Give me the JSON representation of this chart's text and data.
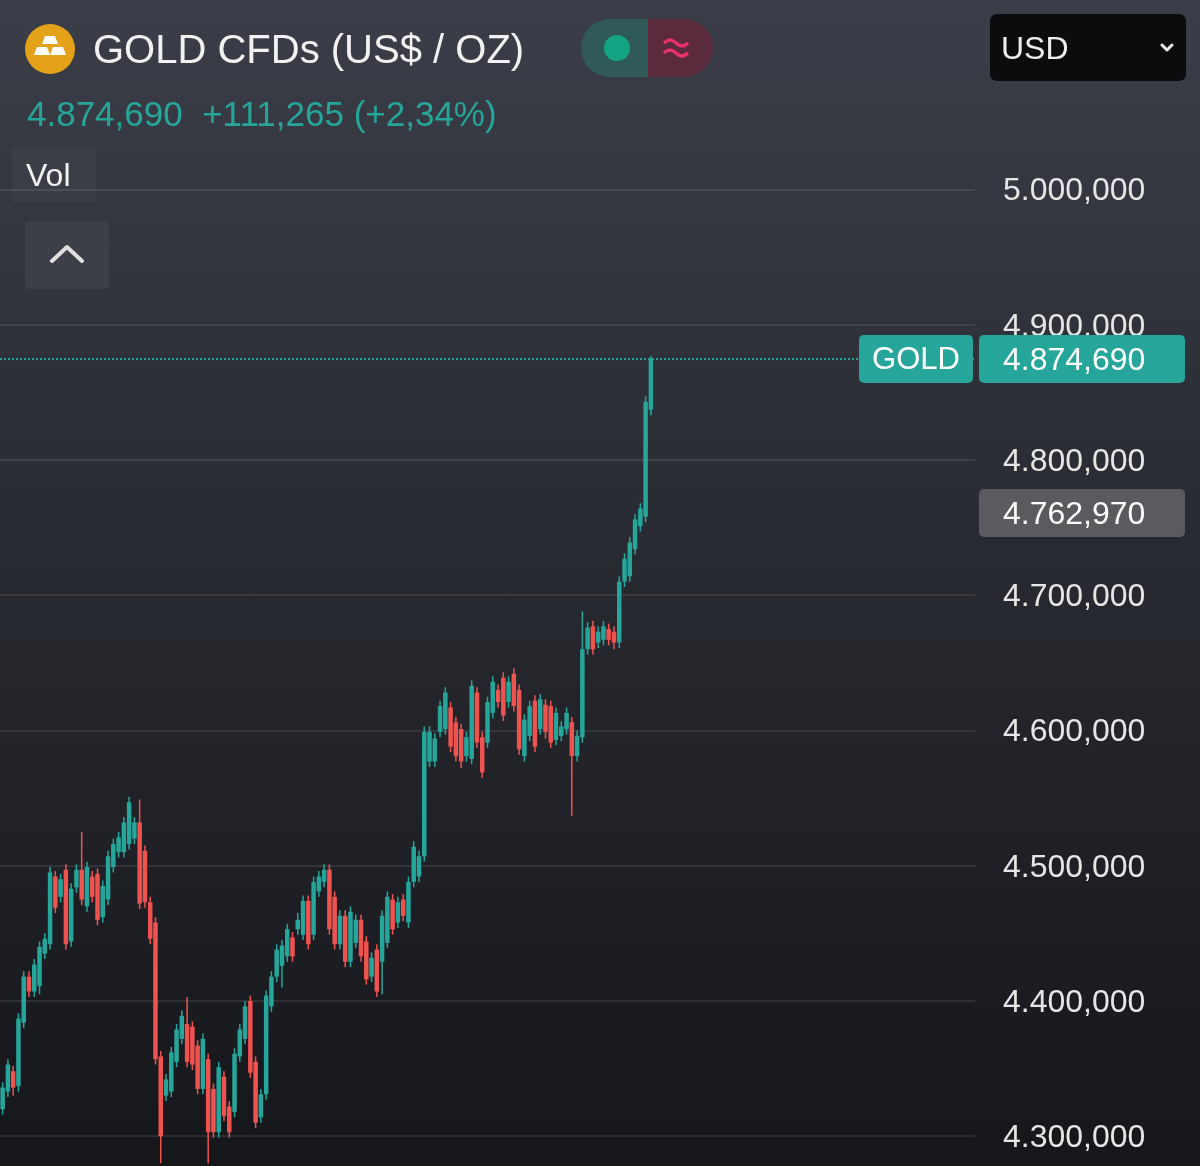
{
  "chart_data": {
    "type": "candlestick",
    "title": "GOLD CFDs (US$ / OZ)",
    "subtitle": "4.874,690  +111,265 (+2,34%)",
    "annotations": [
      "Vol",
      "USD",
      "4.874,690",
      "4.762,970"
    ],
    "categories": [
      null,
      null,
      null,
      null,
      null,
      null,
      null,
      null,
      null,
      null,
      null,
      null,
      null,
      null,
      null,
      null,
      null,
      null,
      null,
      null,
      null,
      null,
      null,
      null,
      null,
      null,
      null,
      null,
      null,
      null,
      null,
      null,
      null,
      null,
      null,
      null,
      null,
      null,
      null,
      null,
      null,
      null,
      null,
      null,
      null,
      null,
      null,
      null,
      null,
      null,
      null,
      null,
      null,
      null,
      null,
      null,
      null,
      null,
      null,
      null,
      null,
      null,
      null,
      null,
      null,
      null,
      null,
      null,
      null,
      null,
      null,
      null,
      null,
      null,
      null,
      null,
      null,
      null,
      null,
      null,
      null,
      null,
      null,
      null,
      null,
      null,
      null,
      null,
      null,
      null,
      null,
      null,
      null,
      null,
      null,
      null,
      null,
      null,
      null,
      null,
      null,
      null,
      null,
      null,
      null,
      null,
      null,
      null,
      null,
      null,
      null,
      null,
      null,
      null,
      null,
      null,
      null,
      null,
      null,
      null,
      null,
      null,
      null,
      null,
      null,
      null,
      null,
      null,
      null,
      null,
      null,
      null,
      null,
      null,
      null,
      null,
      null,
      null,
      null,
      null,
      null,
      null,
      null,
      null,
      null,
      null,
      null,
      null,
      null,
      null,
      null,
      null,
      null,
      null,
      null,
      null,
      null,
      null,
      null,
      null,
      null,
      null,
      null,
      null,
      null,
      null,
      null,
      null,
      null,
      null,
      null,
      null,
      null,
      null,
      null,
      null,
      null,
      null,
      null,
      null,
      null,
      null,
      null,
      null,
      null
    ],
    "ohlc": [
      [
        4320,
        4340,
        4316,
        4336
      ],
      [
        4333,
        4357,
        4329,
        4353
      ],
      [
        4348,
        4352,
        4330,
        4336
      ],
      [
        4337,
        4391,
        4333,
        4387
      ],
      [
        4384,
        4422,
        4380,
        4418
      ],
      [
        4418,
        4422,
        4403,
        4407
      ],
      [
        4407,
        4431,
        4403,
        4427
      ],
      [
        4411,
        4444,
        4405,
        4440
      ],
      [
        4435,
        4450,
        4431,
        4446
      ],
      [
        4442,
        4499,
        4438,
        4495
      ],
      [
        4492,
        4496,
        4465,
        4469
      ],
      [
        4477,
        4494,
        4473,
        4490
      ],
      [
        4497,
        4501,
        4438,
        4442
      ],
      [
        4444,
        4487,
        4440,
        4483
      ],
      [
        4484,
        4501,
        4480,
        4497
      ],
      [
        4497,
        4525,
        4471,
        4475
      ],
      [
        4470,
        4503,
        4466,
        4499
      ],
      [
        4492,
        4496,
        4473,
        4477
      ],
      [
        4494,
        4498,
        4456,
        4460
      ],
      [
        4462,
        4489,
        4458,
        4485
      ],
      [
        4475,
        4511,
        4471,
        4507
      ],
      [
        4499,
        4520,
        4495,
        4516
      ],
      [
        4510,
        4525,
        4506,
        4521
      ],
      [
        4510,
        4536,
        4506,
        4532
      ],
      [
        4516,
        4551,
        4512,
        4547
      ],
      [
        4520,
        4536,
        4516,
        4532
      ],
      [
        4532,
        4549,
        4468,
        4472
      ],
      [
        4511,
        4515,
        4469,
        4473
      ],
      [
        4473,
        4477,
        4442,
        4446
      ],
      [
        4458,
        4462,
        4353,
        4357
      ],
      [
        4359,
        4363,
        4280,
        4300
      ],
      [
        4330,
        4346,
        4326,
        4342
      ],
      [
        4333,
        4366,
        4329,
        4362
      ],
      [
        4355,
        4383,
        4351,
        4379
      ],
      [
        4372,
        4393,
        4368,
        4389
      ],
      [
        4383,
        4403,
        4351,
        4355
      ],
      [
        4381,
        4385,
        4349,
        4353
      ],
      [
        4367,
        4371,
        4331,
        4335
      ],
      [
        4335,
        4376,
        4331,
        4372
      ],
      [
        4357,
        4361,
        4280,
        4303
      ],
      [
        4335,
        4339,
        4299,
        4303
      ],
      [
        4303,
        4355,
        4299,
        4351
      ],
      [
        4344,
        4348,
        4311,
        4315
      ],
      [
        4322,
        4326,
        4299,
        4303
      ],
      [
        4318,
        4365,
        4314,
        4361
      ],
      [
        4359,
        4383,
        4355,
        4379
      ],
      [
        4372,
        4400,
        4368,
        4396
      ],
      [
        4400,
        4404,
        4343,
        4347
      ],
      [
        4355,
        4359,
        4306,
        4310
      ],
      [
        4314,
        4335,
        4310,
        4331
      ],
      [
        4331,
        4408,
        4327,
        4404
      ],
      [
        4396,
        4422,
        4392,
        4418
      ],
      [
        4418,
        4442,
        4414,
        4438
      ],
      [
        4426,
        4445,
        4410,
        4441
      ],
      [
        4433,
        4457,
        4429,
        4453
      ],
      [
        4447,
        4451,
        4429,
        4433
      ],
      [
        4453,
        4465,
        4449,
        4460
      ],
      [
        4449,
        4478,
        4445,
        4474
      ],
      [
        4474,
        4478,
        4438,
        4442
      ],
      [
        4449,
        4492,
        4445,
        4488
      ],
      [
        4481,
        4496,
        4477,
        4492
      ],
      [
        4488,
        4501,
        4484,
        4497
      ],
      [
        4497,
        4501,
        4449,
        4453
      ],
      [
        4477,
        4481,
        4438,
        4442
      ],
      [
        4442,
        4467,
        4438,
        4463
      ],
      [
        4463,
        4467,
        4425,
        4429
      ],
      [
        4429,
        4470,
        4425,
        4466
      ],
      [
        4443,
        4464,
        4439,
        4460
      ],
      [
        4460,
        4464,
        4429,
        4433
      ],
      [
        4444,
        4448,
        4412,
        4416
      ],
      [
        4418,
        4436,
        4414,
        4432
      ],
      [
        4438,
        4442,
        4403,
        4407
      ],
      [
        4429,
        4467,
        4405,
        4463
      ],
      [
        4443,
        4481,
        4439,
        4477
      ],
      [
        4475,
        4479,
        4449,
        4453
      ],
      [
        4458,
        4477,
        4454,
        4473
      ],
      [
        4475,
        4479,
        4459,
        4463
      ],
      [
        4458,
        4492,
        4454,
        4488
      ],
      [
        4488,
        4518,
        4484,
        4514
      ],
      [
        4492,
        4511,
        4488,
        4507
      ],
      [
        4507,
        4603,
        4503,
        4599
      ],
      [
        4577,
        4603,
        4573,
        4599
      ],
      [
        4577,
        4598,
        4573,
        4594
      ],
      [
        4599,
        4622,
        4595,
        4618
      ],
      [
        4601,
        4632,
        4597,
        4628
      ],
      [
        4617,
        4621,
        4584,
        4588
      ],
      [
        4606,
        4610,
        4577,
        4581
      ],
      [
        4601,
        4605,
        4572,
        4577
      ],
      [
        4581,
        4599,
        4577,
        4595
      ],
      [
        4579,
        4637,
        4575,
        4633
      ],
      [
        4628,
        4632,
        4587,
        4591
      ],
      [
        4595,
        4599,
        4565,
        4569
      ],
      [
        4591,
        4625,
        4587,
        4621
      ],
      [
        4613,
        4640,
        4609,
        4636
      ],
      [
        4630,
        4634,
        4617,
        4621
      ],
      [
        4639,
        4643,
        4607,
        4611
      ],
      [
        4621,
        4640,
        4617,
        4636
      ],
      [
        4642,
        4646,
        4614,
        4618
      ],
      [
        4630,
        4634,
        4582,
        4586
      ],
      [
        4581,
        4612,
        4577,
        4608
      ],
      [
        4596,
        4622,
        4592,
        4618
      ],
      [
        4622,
        4626,
        4584,
        4588
      ],
      [
        4601,
        4627,
        4597,
        4623
      ],
      [
        4619,
        4623,
        4594,
        4599
      ],
      [
        4618,
        4622,
        4587,
        4591
      ],
      [
        4593,
        4617,
        4589,
        4613
      ],
      [
        4596,
        4607,
        4592,
        4603
      ],
      [
        4601,
        4617,
        4597,
        4613
      ],
      [
        4606,
        4610,
        4537,
        4581
      ],
      [
        4581,
        4600,
        4577,
        4596
      ],
      [
        4595,
        4688,
        4591,
        4660
      ],
      [
        4660,
        4680,
        4656,
        4676
      ],
      [
        4677,
        4681,
        4656,
        4660
      ],
      [
        4665,
        4677,
        4661,
        4673
      ],
      [
        4667,
        4681,
        4663,
        4677
      ],
      [
        4675,
        4679,
        4663,
        4667
      ],
      [
        4673,
        4677,
        4660,
        4665
      ],
      [
        4665,
        4714,
        4661,
        4710
      ],
      [
        4710,
        4731,
        4706,
        4727
      ],
      [
        4714,
        4743,
        4710,
        4739
      ],
      [
        4734,
        4760,
        4730,
        4756
      ],
      [
        4751,
        4768,
        4747,
        4764
      ],
      [
        4758,
        4847,
        4754,
        4843
      ],
      [
        4837,
        4877,
        4833,
        4874.69
      ],
      null,
      null,
      null,
      null,
      null,
      null,
      null,
      null,
      null,
      null,
      null,
      null,
      null,
      null,
      null,
      null,
      null,
      null,
      null,
      null,
      null,
      null,
      null,
      null,
      null,
      null,
      null,
      null,
      null,
      null,
      null,
      null,
      null,
      null,
      null,
      null,
      null,
      null,
      null,
      null,
      null,
      null,
      null,
      null,
      null,
      null,
      null,
      null,
      null,
      null,
      null,
      null,
      null,
      null,
      null,
      null,
      null,
      null,
      null,
      null,
      null
    ],
    "colors": [
      "#26a69a",
      "#26a69a",
      "#ef5350",
      "#26a69a",
      "#26a69a",
      "#ef5350",
      "#26a69a",
      "#26a69a",
      "#26a69a",
      "#26a69a",
      "#ef5350",
      "#26a69a",
      "#ef5350",
      "#26a69a",
      "#26a69a",
      "#ef5350",
      "#26a69a",
      "#ef5350",
      "#ef5350",
      "#26a69a",
      "#26a69a",
      "#26a69a",
      "#26a69a",
      "#26a69a",
      "#26a69a",
      "#26a69a",
      "#ef5350",
      "#ef5350",
      "#ef5350",
      "#ef5350",
      "#ef5350",
      "#26a69a",
      "#26a69a",
      "#26a69a",
      "#26a69a",
      "#ef5350",
      "#ef5350",
      "#ef5350",
      "#26a69a",
      "#ef5350",
      "#ef5350",
      "#26a69a",
      "#ef5350",
      "#ef5350",
      "#26a69a",
      "#26a69a",
      "#26a69a",
      "#ef5350",
      "#ef5350",
      "#26a69a",
      "#26a69a",
      "#26a69a",
      "#26a69a",
      "#26a69a",
      "#26a69a",
      "#ef5350",
      "#26a69a",
      "#26a69a",
      "#ef5350",
      "#26a69a",
      "#26a69a",
      "#26a69a",
      "#ef5350",
      "#ef5350",
      "#26a69a",
      "#ef5350",
      "#26a69a",
      "#26a69a",
      "#ef5350",
      "#ef5350",
      "#26a69a",
      "#ef5350",
      "#26a69a",
      "#26a69a",
      "#ef5350",
      "#26a69a",
      "#ef5350",
      "#26a69a",
      "#26a69a",
      "#26a69a",
      "#26a69a",
      "#26a69a",
      "#26a69a",
      "#26a69a",
      "#26a69a",
      "#ef5350",
      "#ef5350",
      "#ef5350",
      "#26a69a",
      "#26a69a",
      "#ef5350",
      "#ef5350",
      "#26a69a",
      "#26a69a",
      "#ef5350",
      "#ef5350",
      "#26a69a",
      "#ef5350",
      "#ef5350",
      "#26a69a",
      "#26a69a",
      "#ef5350",
      "#26a69a",
      "#ef5350",
      "#ef5350",
      "#26a69a",
      "#26a69a",
      "#26a69a",
      "#ef5350",
      "#26a69a",
      "#26a69a",
      "#26a69a",
      "#ef5350",
      "#26a69a",
      "#26a69a",
      "#ef5350",
      "#ef5350",
      "#26a69a",
      "#26a69a",
      "#26a69a",
      "#26a69a",
      "#26a69a",
      "#26a69a",
      "#26a69a",
      null,
      null,
      null,
      null,
      null,
      null,
      null,
      null,
      null,
      null,
      null,
      null,
      null,
      null,
      null,
      null,
      null,
      null,
      null,
      null,
      null,
      null,
      null,
      null,
      null,
      null,
      null,
      null,
      null,
      null,
      null,
      null,
      null,
      null,
      null,
      null,
      null,
      null,
      null,
      null,
      null,
      null,
      null,
      null,
      null,
      null,
      null,
      null,
      null,
      null,
      null,
      null,
      null,
      null,
      null,
      null,
      null,
      null,
      null,
      null,
      null
    ],
    "ylim": [
      4278,
      5140
    ],
    "yticks": [
      {
        "value": 4300,
        "label": "4.300,000"
      },
      {
        "value": 4400,
        "label": "4.400,000"
      },
      {
        "value": 4500,
        "label": "4.500,000"
      },
      {
        "value": 4600,
        "label": "4.600,000"
      },
      {
        "value": 4700,
        "label": "4.700,000"
      },
      {
        "value": 4800,
        "label": "4.800,000"
      },
      {
        "value": 4900,
        "label": "4.900,000"
      },
      {
        "value": 5000,
        "label": "5.000,000"
      }
    ],
    "ref_lines": [
      {
        "axis": "y",
        "value": 4874.69,
        "label": "GOLD",
        "color": "#26a69a",
        "line_style": "dotted"
      }
    ],
    "grid": "y",
    "tick_labels": "y"
  }
}
